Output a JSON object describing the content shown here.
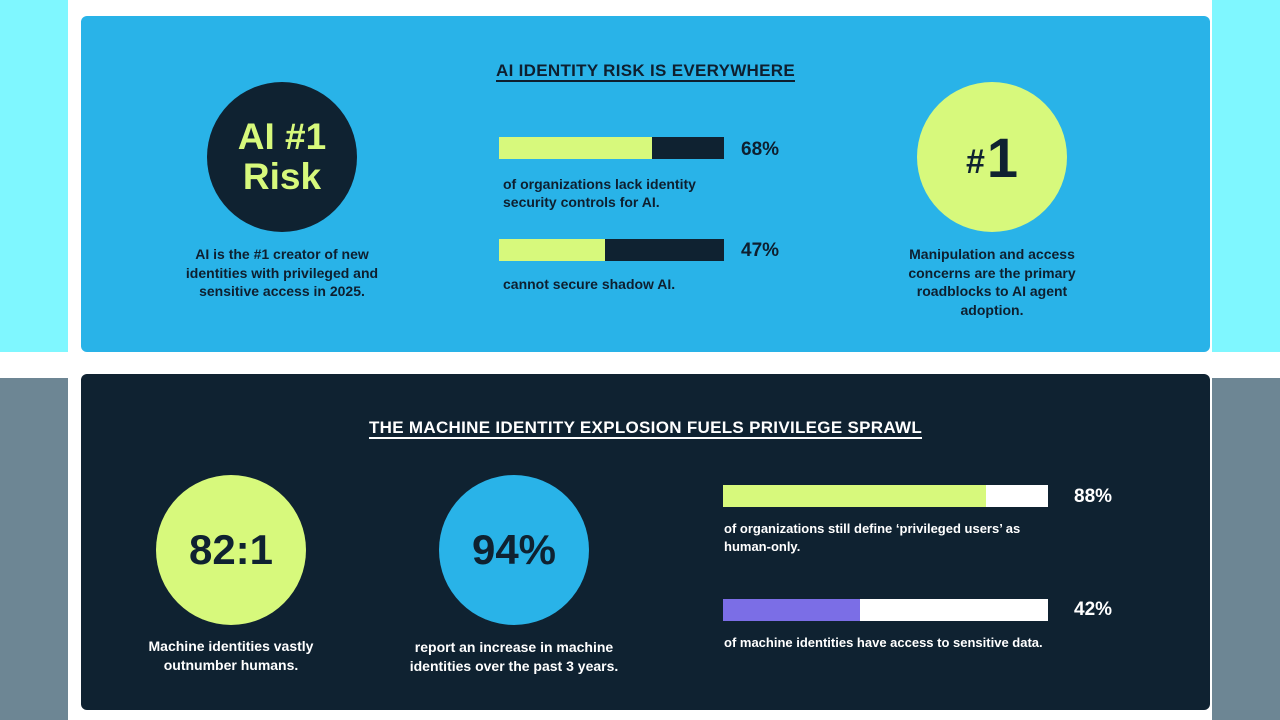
{
  "colors": {
    "light_blue": "#29b3e8",
    "navy": "#0f2231",
    "lime": "#d7f97c",
    "purple": "#7b6ee6",
    "white": "#ffffff"
  },
  "risk_section": {
    "title": "AI IDENTITY RISK IS EVERYWHERE",
    "circle_ai": {
      "line1": "AI #1",
      "line2": "Risk"
    },
    "caption_ai": "AI is the #1 creator of new identities with privileged and sensitive access in 2025.",
    "stat1": {
      "percent": "68%",
      "value": 68,
      "caption": "of organizations lack identity security controls for AI."
    },
    "stat2": {
      "percent": "47%",
      "value": 47,
      "caption": "cannot secure shadow AI."
    },
    "circle_one": {
      "hash": "#",
      "number": "1"
    },
    "caption_one": "Manipulation and access concerns are the primary roadblocks to AI agent adoption."
  },
  "machine_section": {
    "title": "THE MACHINE IDENTITY EXPLOSION FUELS PRIVILEGE SPRAWL",
    "circle_ratio": "82:1",
    "caption_ratio": "Machine identities vastly outnumber humans.",
    "circle_94": "94%",
    "caption_94": "report an increase in machine identities over the past 3 years.",
    "stat3": {
      "percent": "88%",
      "value": 88,
      "caption": "of organizations still define ‘privileged users’ as human-only."
    },
    "stat4": {
      "percent": "42%",
      "value": 42,
      "caption": "of machine identities have access to sensitive data."
    }
  }
}
